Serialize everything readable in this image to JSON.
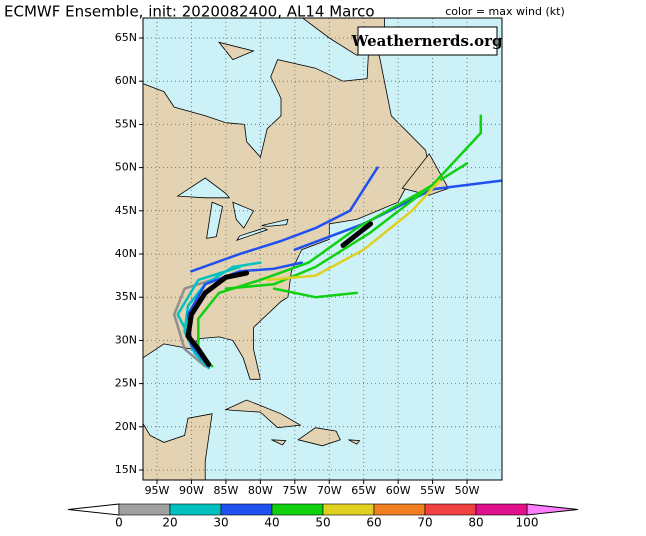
{
  "header": {
    "title": "ECMWF Ensemble, init: 2020082400, AL14 Marco",
    "legend_title": "color = max wind (kt)",
    "watermark": "Weathernerds.org"
  },
  "map": {
    "lat_ticks": [
      {
        "value": 15,
        "label": "15N"
      },
      {
        "value": 20,
        "label": "20N"
      },
      {
        "value": 25,
        "label": "25N"
      },
      {
        "value": 30,
        "label": "30N"
      },
      {
        "value": 35,
        "label": "35N"
      },
      {
        "value": 40,
        "label": "40N"
      },
      {
        "value": 45,
        "label": "45N"
      },
      {
        "value": 50,
        "label": "50N"
      },
      {
        "value": 55,
        "label": "55N"
      },
      {
        "value": 60,
        "label": "60N"
      },
      {
        "value": 65,
        "label": "65N"
      }
    ],
    "lon_ticks": [
      {
        "value": -95,
        "label": "95W"
      },
      {
        "value": -90,
        "label": "90W"
      },
      {
        "value": -85,
        "label": "85W"
      },
      {
        "value": -80,
        "label": "80W"
      },
      {
        "value": -75,
        "label": "75W"
      },
      {
        "value": -70,
        "label": "70W"
      },
      {
        "value": -65,
        "label": "65W"
      },
      {
        "value": -60,
        "label": "60W"
      },
      {
        "value": -55,
        "label": "55W"
      },
      {
        "value": -50,
        "label": "50W"
      }
    ],
    "grid": true,
    "tracks": [
      {
        "color": "#909090",
        "lon": [
          -88,
          -91,
          -92.5,
          -91,
          -87
        ],
        "lat": [
          27,
          29,
          33,
          36,
          37
        ]
      },
      {
        "color": "#00c0c0",
        "lon": [
          -87.5,
          -89.5,
          -91,
          -90.5,
          -88,
          -84,
          -80
        ],
        "lat": [
          26.8,
          28.5,
          31,
          34,
          36.5,
          38.5,
          39
        ]
      },
      {
        "color": "#00c0c0",
        "lon": [
          -90,
          -92,
          -89,
          -83
        ],
        "lat": [
          30,
          33,
          37,
          38.5
        ]
      },
      {
        "color": "#2050f0",
        "lon": [
          -87.5,
          -90,
          -90.5,
          -88,
          -83,
          -78,
          -74
        ],
        "lat": [
          27,
          29.5,
          33,
          36.5,
          38,
          38.3,
          39
        ]
      },
      {
        "color": "#2050f0",
        "lon": [
          -90,
          -83,
          -77,
          -72,
          -67,
          -63
        ],
        "lat": [
          38,
          40,
          41.5,
          43,
          45,
          50
        ]
      },
      {
        "color": "#2050f0",
        "lon": [
          -75,
          -65,
          -55,
          -45
        ],
        "lat": [
          40.5,
          43.5,
          47.5,
          48.5
        ]
      },
      {
        "color": "#10d010",
        "lon": [
          -87,
          -89,
          -89,
          -86,
          -80,
          -73,
          -66,
          -56,
          -50
        ],
        "lat": [
          27,
          29,
          32.5,
          35.5,
          37,
          39,
          43,
          47.5,
          50.5
        ]
      },
      {
        "color": "#10d010",
        "lon": [
          -85,
          -78,
          -72,
          -64,
          -55,
          -48,
          -48
        ],
        "lat": [
          36,
          36.5,
          38.5,
          42.5,
          48,
          54,
          56
        ]
      },
      {
        "color": "#10d010",
        "lon": [
          -78,
          -72,
          -66
        ],
        "lat": [
          36,
          35,
          35.5
        ]
      },
      {
        "color": "#e0d020",
        "lon": [
          -79,
          -72,
          -65,
          -58,
          -54
        ],
        "lat": [
          37,
          37.5,
          40.5,
          45,
          48.5
        ]
      },
      {
        "color": "#000000",
        "lon": [
          -87.5,
          -89,
          -90.5,
          -90,
          -88,
          -85,
          -82
        ],
        "lat": [
          27.2,
          29,
          30.5,
          33,
          35.5,
          37.3,
          37.8
        ]
      },
      {
        "color": "#000000",
        "lon": [
          -68,
          -64
        ],
        "lat": [
          41,
          43.5
        ]
      }
    ]
  },
  "colorbar": {
    "bounds": [
      0,
      20,
      30,
      40,
      50,
      60,
      70,
      80,
      100
    ],
    "labels": [
      "0",
      "20",
      "30",
      "40",
      "50",
      "60",
      "70",
      "80",
      "100"
    ],
    "colors": [
      "#a0a0a0",
      "#00c0c0",
      "#2050f0",
      "#10d010",
      "#e0d020",
      "#f08020",
      "#f04040",
      "#e0108a"
    ],
    "under_color": "#ffffff",
    "over_color": "#ff80ff"
  }
}
